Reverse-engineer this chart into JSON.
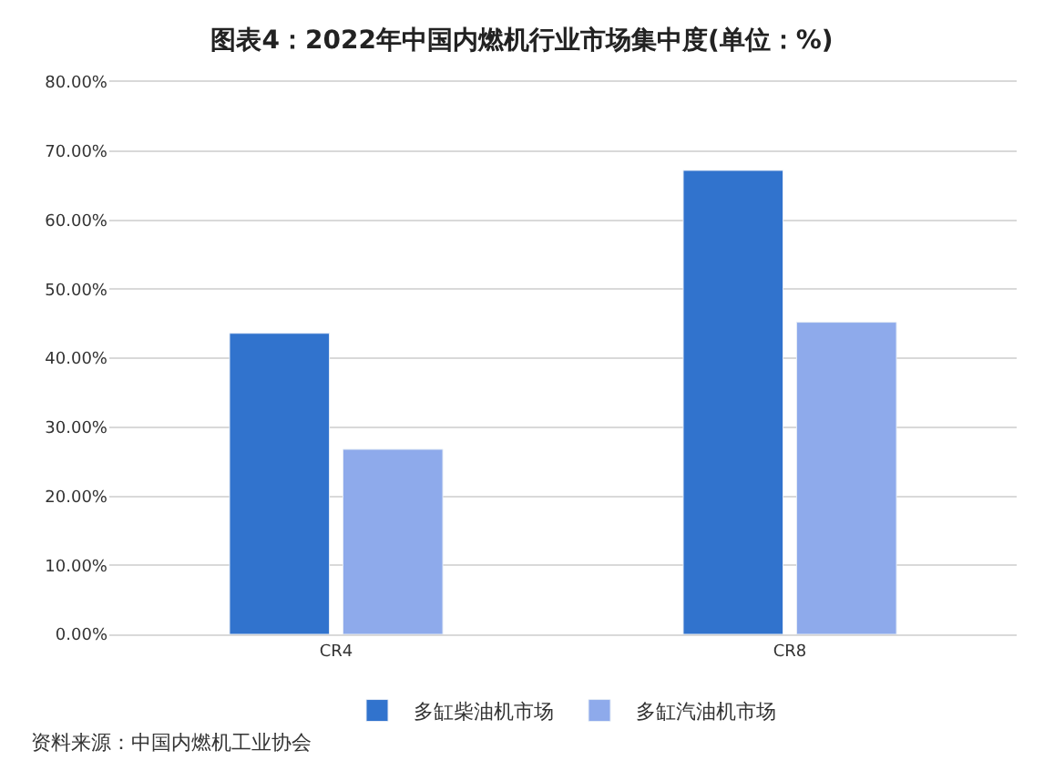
{
  "chart_data": {
    "type": "bar",
    "title": "图表4：2022年中国内燃机行业市场集中度(单位：%)",
    "categories": [
      "CR4",
      "CR8"
    ],
    "series": [
      {
        "name": "多缸柴油机市场",
        "color": "#3173cd",
        "values": [
          43.6,
          67.2
        ]
      },
      {
        "name": "多缸汽油机市场",
        "color": "#8eaaeb",
        "values": [
          26.8,
          45.2
        ]
      }
    ],
    "ylim": [
      0,
      80
    ],
    "yticks": [
      {
        "value": 0,
        "label": "0.00%"
      },
      {
        "value": 10,
        "label": "10.00%"
      },
      {
        "value": 20,
        "label": "20.00%"
      },
      {
        "value": 30,
        "label": "30.00%"
      },
      {
        "value": 40,
        "label": "40.00%"
      },
      {
        "value": 50,
        "label": "50.00%"
      },
      {
        "value": 60,
        "label": "60.00%"
      },
      {
        "value": 70,
        "label": "70.00%"
      },
      {
        "value": 80,
        "label": "80.00%"
      }
    ],
    "grid": "y",
    "legend": "bottom",
    "annotations": [
      "资料来源：中国内燃机工业协会"
    ]
  }
}
